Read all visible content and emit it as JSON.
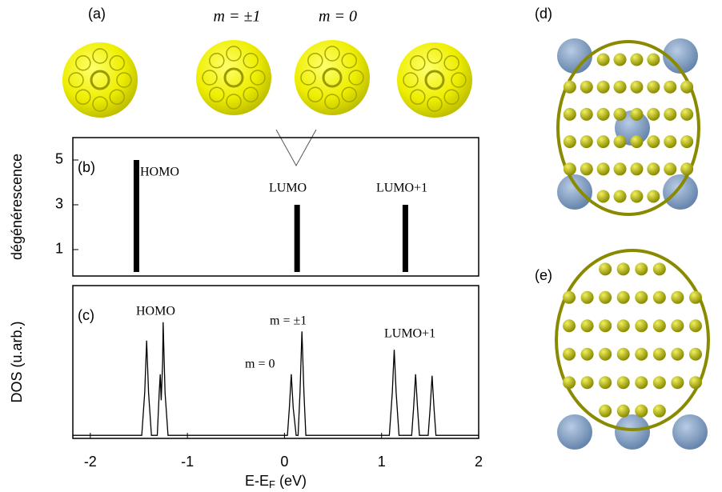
{
  "panel_labels": [
    "(a)",
    "(d)",
    "(e)"
  ],
  "molecule_labels": [
    "m = ±1",
    "m = 0"
  ],
  "chart_data": [
    {
      "type": "bar",
      "panel": "(b)",
      "ylabel": "dégénérescence",
      "x": [
        -1.525,
        0.13,
        1.245
      ],
      "values": [
        5,
        3,
        3
      ],
      "color": "#000000",
      "annotations": [
        "HOMO",
        "LUMO",
        "LUMO+1"
      ],
      "xlim": [
        -2.18,
        2
      ],
      "ylim": [
        -0.18,
        6
      ],
      "yticks": [
        1,
        3,
        5
      ]
    },
    {
      "type": "line",
      "panel": "(c)",
      "ylabel": "DOS (u.arb.)",
      "xlabel": [
        "E-E",
        "F",
        " (eV)"
      ],
      "annotations": [
        "HOMO",
        "m = ±1",
        "m = 0",
        "LUMO+1"
      ],
      "xlim": [
        -2.18,
        2
      ],
      "ylim": [
        0,
        1
      ],
      "xticks": [
        -2,
        -1,
        0,
        1,
        2
      ],
      "series": [
        {
          "color": "#000000",
          "x": [
            -2.18,
            -1.47,
            -1.44,
            -1.42,
            -1.4,
            -1.37,
            -1.31,
            -1.29,
            -1.28,
            -1.27,
            -1.255,
            -1.25,
            -1.23,
            -1.2,
            0.03,
            0.05,
            0.07,
            0.09,
            0.12,
            0.14,
            0.16,
            0.18,
            0.2,
            0.22,
            1.08,
            1.11,
            1.13,
            1.15,
            1.18,
            1.31,
            1.33,
            1.35,
            1.37,
            1.39,
            1.48,
            1.5,
            1.52,
            1.54,
            1.56,
            2.0
          ],
          "values": [
            0.02,
            0.02,
            0.3,
            0.64,
            0.3,
            0.02,
            0.02,
            0.3,
            0.42,
            0.25,
            0.5,
            0.76,
            0.3,
            0.02,
            0.02,
            0.2,
            0.42,
            0.2,
            0.02,
            0.02,
            0.3,
            0.7,
            0.3,
            0.02,
            0.02,
            0.3,
            0.58,
            0.3,
            0.02,
            0.02,
            0.2,
            0.42,
            0.2,
            0.02,
            0.02,
            0.2,
            0.41,
            0.2,
            0.02,
            0.02
          ]
        }
      ]
    }
  ]
}
